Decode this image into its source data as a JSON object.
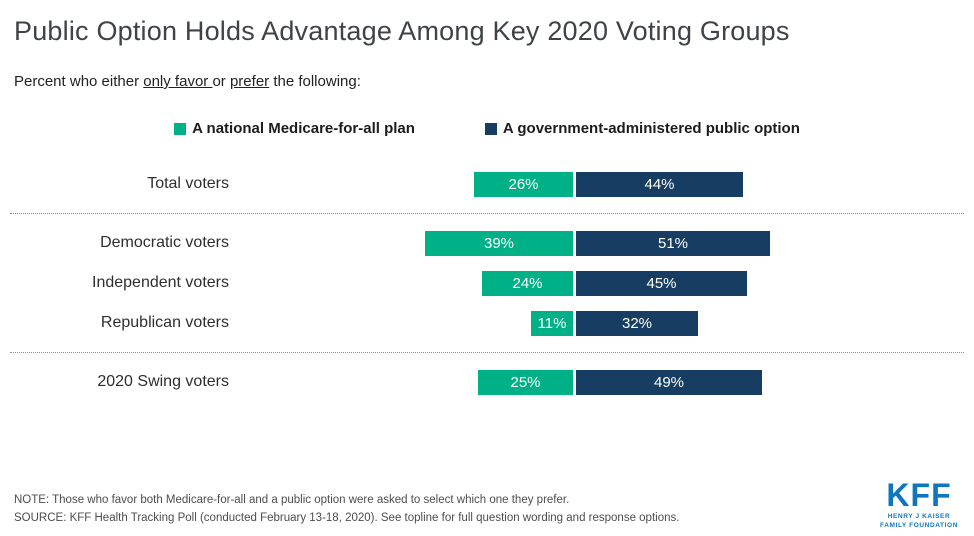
{
  "title": "Public Option Holds Advantage Among Key 2020 Voting Groups",
  "subtitle": {
    "prefix": "Percent who either ",
    "underline1": "only favor ",
    "middle": "or ",
    "underline2": "prefer",
    "suffix": " the following:"
  },
  "legend": [
    {
      "label": "A national Medicare-for-all plan",
      "color": "#00b086"
    },
    {
      "label": "A government-administered public option",
      "color": "#173e62"
    }
  ],
  "chart_data": {
    "type": "bar",
    "orientation": "horizontal",
    "title": "Public Option Holds Advantage Among Key 2020 Voting Groups",
    "categories": [
      "Total voters",
      "Democratic voters",
      "Independent voters",
      "Republican voters",
      "2020 Swing voters"
    ],
    "series": [
      {
        "name": "A national Medicare-for-all plan",
        "color": "#00b086",
        "values": [
          26,
          39,
          24,
          11,
          25
        ]
      },
      {
        "name": "A government-administered public option",
        "color": "#173e62",
        "values": [
          44,
          51,
          45,
          32,
          49
        ]
      }
    ],
    "value_suffix": "%",
    "separators_after": [
      0,
      3
    ],
    "legend_position": "top",
    "grid": false
  },
  "notes": {
    "note": "NOTE: Those who favor both Medicare-for-all and a public option were asked to select which one they prefer.",
    "source": "SOURCE: KFF Health Tracking Poll (conducted February 13-18, 2020). See topline for full question wording and response options."
  },
  "logo": {
    "text": "KFF",
    "tagline_line1": "HENRY J KAISER",
    "tagline_line2": "FAMILY FOUNDATION",
    "color": "#0d76bc"
  }
}
